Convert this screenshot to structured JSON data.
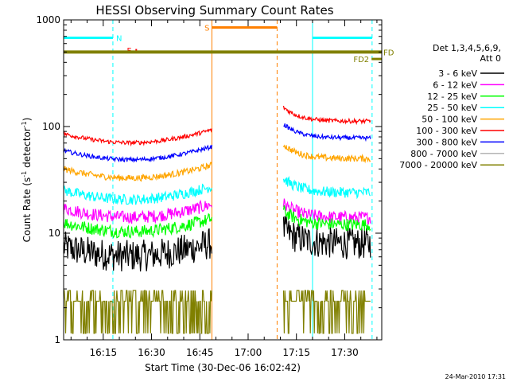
{
  "chart_data": {
    "type": "line",
    "title": "HESSI Observing Summary Count Rates",
    "xlabel": "Start Time (30-Dec-06 16:02:42)",
    "ylabel": "Count Rate (s",
    "ylabel_exp": "-1",
    "ylabel_mid": " detector",
    "ylabel_end": ")",
    "y_scale": "log",
    "ylim": [
      1,
      1000
    ],
    "xlim": [
      "16:02:42",
      "17:41:30"
    ],
    "x_ticks": [
      "16:15",
      "16:30",
      "16:45",
      "17:00",
      "17:15",
      "17:30"
    ],
    "y_ticks": [
      "1",
      "10",
      "100",
      "1000"
    ],
    "legend_title_1": "Det 1,3,4,5,6,9,",
    "legend_title_2": "Att 0",
    "legend_placement": "right",
    "timestamp": "24-Mar-2010 17:31",
    "series": [
      {
        "name": "3 - 6 keV",
        "color": "#000000",
        "level_a": 6.5,
        "level_b": 8.0,
        "noise": 0.3
      },
      {
        "name": "6 - 12 keV",
        "color": "#ff00ff",
        "level_a": 15,
        "level_b": 14,
        "noise": 0.12
      },
      {
        "name": "12 - 25 keV",
        "color": "#00ff00",
        "level_a": 11,
        "level_b": 12,
        "noise": 0.12
      },
      {
        "name": "25 - 50 keV",
        "color": "#00ffff",
        "level_a": 22,
        "level_b": 24,
        "noise": 0.1
      },
      {
        "name": "50 - 100 keV",
        "color": "#ffa500",
        "level_a": 35,
        "level_b": 50,
        "noise": 0.06
      },
      {
        "name": "100 - 300 keV",
        "color": "#ff0000",
        "level_a": 75,
        "level_b": 112,
        "noise": 0.04
      },
      {
        "name": "300 - 800 keV",
        "color": "#0000ff",
        "level_a": 52,
        "level_b": 78,
        "noise": 0.04
      },
      {
        "name": "800 - 7000 keV",
        "color": "#b4b4b4",
        "level_a": 0,
        "level_b": 0,
        "noise": 0
      },
      {
        "name": "7000 - 20000 keV",
        "color": "#808000",
        "level_a": 2.3,
        "level_b": 2.3,
        "noise": 0.25
      }
    ],
    "segments": [
      {
        "start": "16:02:42",
        "end": "16:48:45"
      },
      {
        "start": "17:11:00",
        "end": "17:38:00"
      }
    ],
    "flags": [
      {
        "label": "N",
        "color": "#00ffff",
        "ranges": [
          [
            "16:02:42",
            "16:18:00"
          ],
          [
            "17:20:00",
            "17:38:30"
          ]
        ],
        "level": 680
      },
      {
        "label": "F",
        "color": "#ff0000",
        "ranges": [
          [
            "16:25:00",
            "16:25:30"
          ]
        ],
        "level": 520
      },
      {
        "label": "S",
        "color": "#ff8000",
        "ranges": [
          [
            "16:48:45",
            "17:09:00"
          ]
        ],
        "level": 850
      },
      {
        "label": "FD",
        "color": "#808000",
        "ranges": [
          [
            "16:02:42",
            "17:41:30"
          ]
        ],
        "level": 500
      },
      {
        "label": "FD2",
        "color": "#808000",
        "ranges": [
          [
            "17:38:20",
            "17:41:30"
          ]
        ],
        "level": 430
      }
    ],
    "vlines": [
      {
        "time": "16:18:00",
        "color": "#00ffff",
        "style": "dashed"
      },
      {
        "time": "16:48:45",
        "color": "#ff8000",
        "style": "solid"
      },
      {
        "time": "17:09:00",
        "color": "#ff8000",
        "style": "dashed"
      },
      {
        "time": "17:20:00",
        "color": "#00ffff",
        "style": "solid"
      },
      {
        "time": "17:38:30",
        "color": "#00ffff",
        "style": "dashed"
      }
    ]
  }
}
